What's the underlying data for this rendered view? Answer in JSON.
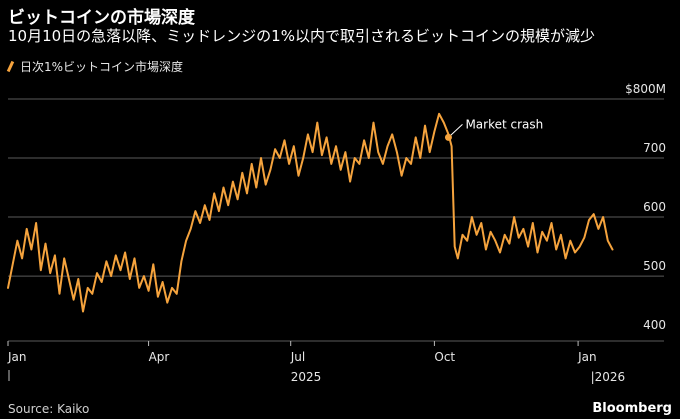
{
  "header": {
    "title": "ビットコインの市場深度",
    "subtitle": "10月10日の急落以降、ミッドレンジの1%以内で取引されるビットコインの規模が減少"
  },
  "footer": {
    "source": "Source: Kaiko",
    "brand": "Bloomberg"
  },
  "colors": {
    "line": "#f5a33d",
    "grid": "#5a5a5a",
    "text": "#ffffff",
    "background": "#000000"
  },
  "chart_data": {
    "type": "line",
    "title": "ビットコインの市場深度",
    "subtitle": "10月10日の急落以降、ミッドレンジの1%以内で取引されるビットコインの規模が減少",
    "legend": [
      "日次1%ビットコイン市場深度"
    ],
    "y_ticks": [
      {
        "value": 800,
        "label": "$800M"
      },
      {
        "value": 700,
        "label": "700"
      },
      {
        "value": 600,
        "label": "600"
      },
      {
        "value": 500,
        "label": "500"
      },
      {
        "value": 400,
        "label": "400"
      }
    ],
    "ylim": [
      390,
      800
    ],
    "xlim": [
      0,
      420
    ],
    "x_ticks": [
      {
        "value": 0,
        "label": "Jan"
      },
      {
        "value": 90,
        "label": "Apr"
      },
      {
        "value": 181,
        "label": "Jul"
      },
      {
        "value": 273,
        "label": "Oct"
      },
      {
        "value": 365,
        "label": "Jan"
      }
    ],
    "year_labels": [
      {
        "value": 181,
        "label": "2025"
      },
      {
        "value": 373,
        "label": "|2026"
      }
    ],
    "annotation": {
      "text": "Market crash",
      "x": 282,
      "y": 735
    },
    "series": [
      {
        "name": "日次1%ビットコイン市場深度",
        "x": [
          0,
          3,
          6,
          9,
          12,
          15,
          18,
          21,
          24,
          27,
          30,
          33,
          36,
          39,
          42,
          45,
          48,
          51,
          54,
          57,
          60,
          63,
          66,
          69,
          72,
          75,
          78,
          81,
          84,
          87,
          90,
          93,
          96,
          99,
          102,
          105,
          108,
          111,
          114,
          117,
          120,
          123,
          126,
          129,
          132,
          135,
          138,
          141,
          144,
          147,
          150,
          153,
          156,
          159,
          162,
          165,
          168,
          171,
          174,
          177,
          180,
          183,
          186,
          189,
          192,
          195,
          198,
          201,
          204,
          207,
          210,
          213,
          216,
          219,
          222,
          225,
          228,
          231,
          234,
          237,
          240,
          243,
          246,
          249,
          252,
          255,
          258,
          261,
          264,
          267,
          270,
          273,
          276,
          279,
          282,
          284,
          286,
          288,
          291,
          294,
          297,
          300,
          303,
          306,
          309,
          312,
          315,
          318,
          321,
          324,
          327,
          330,
          333,
          336,
          339,
          342,
          345,
          348,
          351,
          354,
          357,
          360,
          363,
          366,
          369,
          372,
          375,
          378,
          381,
          384,
          387
        ],
        "values": [
          480,
          520,
          560,
          530,
          580,
          545,
          590,
          510,
          555,
          505,
          535,
          470,
          530,
          495,
          460,
          495,
          440,
          480,
          470,
          505,
          490,
          525,
          500,
          535,
          510,
          540,
          495,
          530,
          480,
          500,
          475,
          520,
          465,
          490,
          455,
          480,
          470,
          525,
          560,
          580,
          610,
          590,
          620,
          595,
          640,
          610,
          650,
          620,
          660,
          630,
          675,
          640,
          690,
          650,
          700,
          655,
          680,
          715,
          700,
          730,
          690,
          720,
          670,
          700,
          740,
          710,
          760,
          705,
          735,
          690,
          720,
          680,
          710,
          660,
          700,
          690,
          730,
          700,
          760,
          710,
          690,
          720,
          740,
          710,
          670,
          700,
          690,
          735,
          700,
          755,
          710,
          745,
          775,
          760,
          740,
          720,
          550,
          530,
          570,
          560,
          600,
          570,
          590,
          545,
          575,
          560,
          540,
          570,
          555,
          600,
          565,
          580,
          550,
          590,
          540,
          575,
          560,
          590,
          545,
          570,
          530,
          560,
          540,
          550,
          565,
          595,
          605,
          580,
          600,
          560,
          545
        ]
      }
    ]
  }
}
